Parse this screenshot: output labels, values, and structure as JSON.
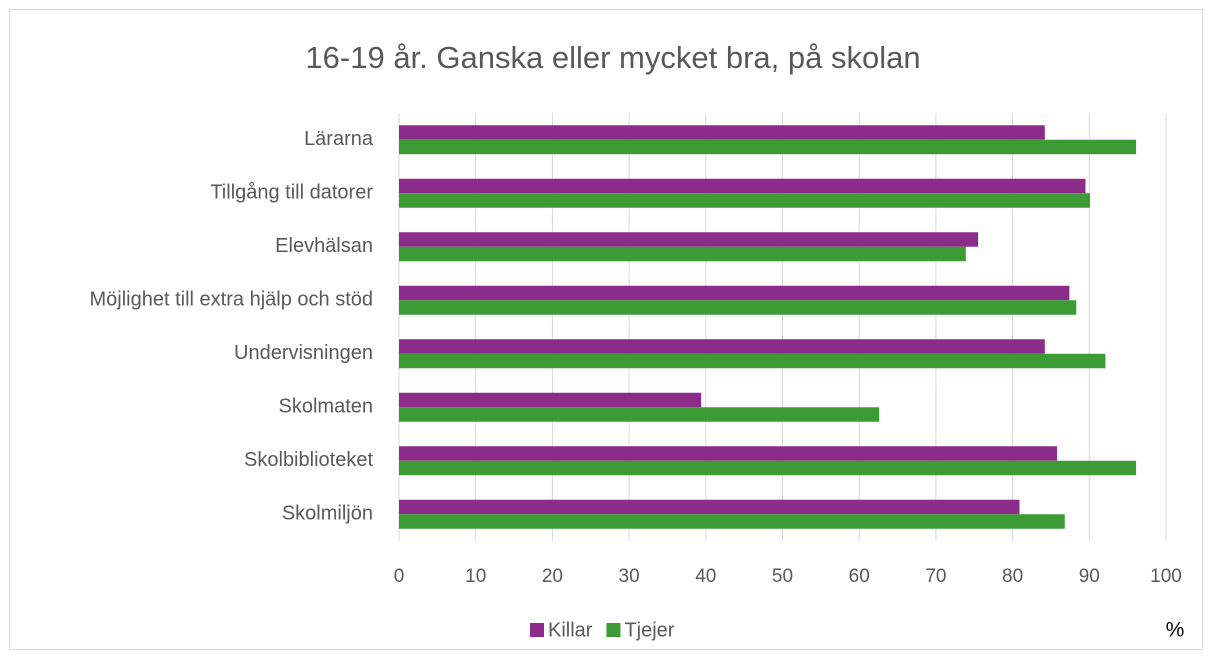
{
  "chart_data": {
    "type": "barh",
    "title": "16-19 år. Ganska eller mycket bra, på skolan",
    "categories": [
      "Lärarna",
      "Tillgång till datorer",
      "Elevhälsan",
      "Möjlighet till extra hjälp och stöd",
      "Undervisningen",
      "Skolmaten",
      "Skolbiblioteket",
      "Skolmiljön"
    ],
    "series": [
      {
        "name": "Killar",
        "color": "#8b2c8a",
        "values": [
          84.2,
          89.5,
          75.5,
          87.4,
          84.2,
          39.4,
          85.8,
          80.9
        ]
      },
      {
        "name": "Tjejer",
        "color": "#3c9b35",
        "values": [
          96.1,
          90.1,
          73.9,
          88.3,
          92.1,
          62.6,
          96.1,
          86.8
        ]
      }
    ],
    "xlabel": "%",
    "xlim": [
      0,
      100
    ],
    "xticks": [
      0,
      10,
      20,
      30,
      40,
      50,
      60,
      70,
      80,
      90,
      100
    ],
    "grid": true,
    "legend": "bottom"
  }
}
